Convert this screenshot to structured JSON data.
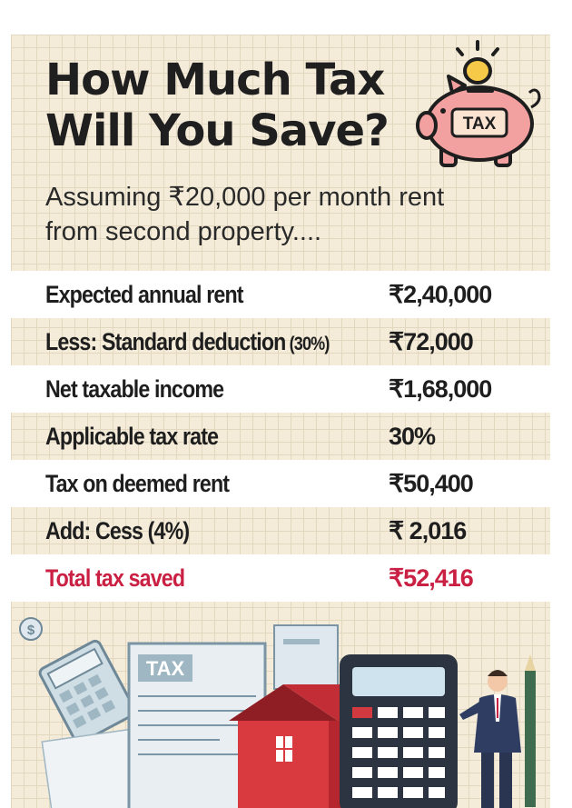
{
  "header": {
    "title_line1": "How Much Tax",
    "title_line2": "Will You Save?",
    "subtitle_line1": "Assuming ₹20,000 per month rent",
    "subtitle_line2": "from second property...."
  },
  "piggy_bank": {
    "icon": "piggy-bank-icon",
    "label": "TAX"
  },
  "table": {
    "rows": [
      {
        "label": "Expected annual rent",
        "value": "₹2,40,000"
      },
      {
        "label": "Less: Standard deduction",
        "label_suffix": " (30%)",
        "value": "₹72,000"
      },
      {
        "label": "Net taxable income",
        "value": "₹1,68,000"
      },
      {
        "label": "Applicable tax rate",
        "value": "30%"
      },
      {
        "label": "Tax on deemed rent",
        "value": "₹50,400"
      },
      {
        "label": "Add: Cess (4%)",
        "value": "₹ 2,016"
      },
      {
        "label": "Total tax saved",
        "value": "₹52,416"
      }
    ]
  },
  "illustration": {
    "icons": [
      "coin-icon",
      "calculator-icon",
      "tax-form-icon",
      "house-icon",
      "businessman-icon",
      "pencil-icon"
    ],
    "form_label": "TAX"
  },
  "colors": {
    "background": "#f4ecd9",
    "grid": "#e2d7bf",
    "text": "#1e1e1e",
    "total_red": "#c92043",
    "piggy_pink": "#f2a0a0"
  }
}
